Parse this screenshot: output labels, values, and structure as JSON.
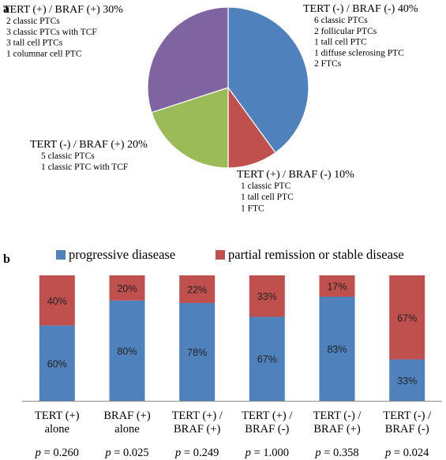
{
  "panel_labels": {
    "a": "a",
    "b": "b"
  },
  "chart_data": [
    {
      "type": "pie",
      "slices": [
        {
          "label": "TERT (-) / BRAF (-) 40%",
          "value": 40,
          "color": "#4f81bd",
          "details": [
            "6 classic PTCs",
            "2 follicular PTCs",
            "1 tall cell PTC",
            "1 diffuse sclerosing PTC",
            "2 FTCs"
          ]
        },
        {
          "label": "TERT (+) / BRAF (-) 10%",
          "value": 10,
          "color": "#c0504d",
          "details": [
            "1 classic PTC",
            "1 tall cell PTC",
            "1 FTC"
          ]
        },
        {
          "label": "TERT (-) / BRAF (+) 20%",
          "value": 20,
          "color": "#9bbb59",
          "details": [
            "5 classic PTCs",
            "1 classic PTC with TCF"
          ]
        },
        {
          "label": "TERT (+) / BRAF (+) 30%",
          "value": 30,
          "color": "#8064a2",
          "details": [
            "2 classic PTCs",
            "3 classic PTCs with TCF",
            "3 tall cell PTCs",
            "1 columnar cell  PTC"
          ]
        }
      ]
    },
    {
      "type": "bar",
      "stacked": true,
      "percent": true,
      "legend_position": "top",
      "categories": [
        [
          "TERT (+)",
          "alone"
        ],
        [
          "BRAF (+)",
          "alone"
        ],
        [
          "TERT (+) /",
          "BRAF (+)"
        ],
        [
          "TERT (+) /",
          "BRAF (-)"
        ],
        [
          "TERT (-) /",
          "BRAF (+)"
        ],
        [
          "TERT (-) /",
          "BRAF (-)"
        ]
      ],
      "p_values": [
        "p = 0.260",
        "p = 0.025",
        "p = 0.249",
        "p = 1.000",
        "p = 0.358",
        "p = 0.024"
      ],
      "series": [
        {
          "name": "progressive diasease",
          "color": "#4f81bd",
          "values": [
            60,
            80,
            78,
            67,
            83,
            33
          ],
          "labels": [
            "60%",
            "80%",
            "78%",
            "67%",
            "83%",
            "33%"
          ]
        },
        {
          "name": "partial remission or stable disease",
          "color": "#c0504d",
          "values": [
            40,
            20,
            22,
            33,
            17,
            67
          ],
          "labels": [
            "40%",
            "20%",
            "22%",
            "33%",
            "17%",
            "67%"
          ]
        }
      ],
      "ylim": [
        0,
        100
      ]
    }
  ]
}
